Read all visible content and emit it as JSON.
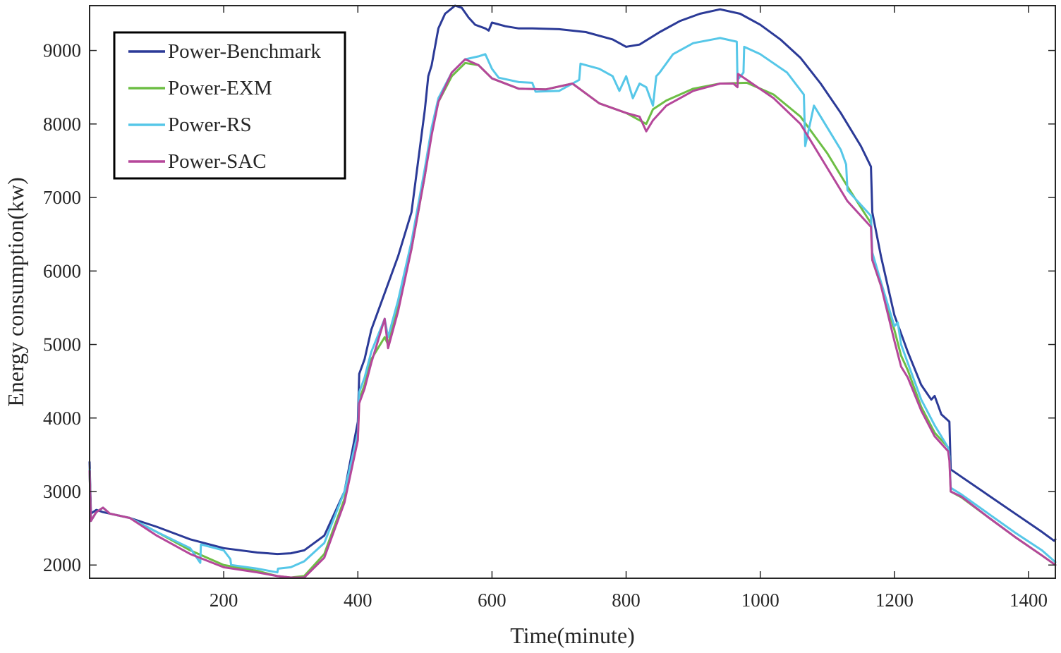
{
  "chart_data": {
    "type": "line",
    "title": "",
    "xlabel": "Time(minute)",
    "ylabel": "Energy consumption(kw)",
    "xlim": [
      0,
      1440
    ],
    "ylim": [
      1820,
      9610
    ],
    "xticks": [
      200,
      400,
      600,
      800,
      1000,
      1200,
      1400
    ],
    "yticks": [
      2000,
      3000,
      4000,
      5000,
      6000,
      7000,
      8000,
      9000
    ],
    "legend_position": "top-left",
    "series": [
      {
        "name": "Power-Benchmark",
        "color": "#2B3A97",
        "x": [
          0,
          2,
          10,
          20,
          30,
          60,
          100,
          150,
          200,
          250,
          280,
          300,
          320,
          350,
          380,
          400,
          402,
          410,
          420,
          440,
          460,
          480,
          500,
          505,
          510,
          520,
          530,
          545,
          555,
          565,
          575,
          590,
          595,
          600,
          620,
          640,
          660,
          700,
          740,
          780,
          800,
          820,
          850,
          880,
          910,
          940,
          970,
          1000,
          1030,
          1060,
          1090,
          1120,
          1150,
          1165,
          1167,
          1180,
          1200,
          1220,
          1240,
          1255,
          1260,
          1270,
          1282,
          1284,
          1300,
          1340,
          1380,
          1420,
          1438,
          1440
        ],
        "values": [
          3400,
          2700,
          2750,
          2720,
          2700,
          2640,
          2520,
          2350,
          2230,
          2170,
          2150,
          2160,
          2200,
          2400,
          3000,
          3950,
          4600,
          4800,
          5200,
          5700,
          6200,
          6800,
          8200,
          8650,
          8800,
          9300,
          9500,
          9610,
          9580,
          9450,
          9350,
          9300,
          9270,
          9380,
          9330,
          9300,
          9300,
          9290,
          9250,
          9150,
          9050,
          9080,
          9250,
          9400,
          9500,
          9560,
          9500,
          9350,
          9150,
          8900,
          8550,
          8150,
          7700,
          7420,
          6800,
          6200,
          5400,
          4900,
          4450,
          4250,
          4300,
          4050,
          3950,
          3300,
          3200,
          2950,
          2700,
          2450,
          2330,
          2350
        ]
      },
      {
        "name": "Power-EXM",
        "color": "#6DBE45",
        "x": [
          0,
          2,
          10,
          20,
          30,
          60,
          100,
          150,
          200,
          250,
          280,
          300,
          320,
          350,
          380,
          400,
          402,
          410,
          420,
          440,
          445,
          460,
          480,
          500,
          510,
          520,
          540,
          560,
          580,
          600,
          640,
          680,
          720,
          760,
          800,
          820,
          830,
          840,
          860,
          900,
          940,
          980,
          1020,
          1060,
          1100,
          1130,
          1165,
          1167,
          1180,
          1200,
          1210,
          1220,
          1240,
          1260,
          1280,
          1282,
          1284,
          1300,
          1340,
          1380,
          1420,
          1440
        ],
        "values": [
          3300,
          2600,
          2720,
          2780,
          2700,
          2640,
          2450,
          2200,
          2000,
          1920,
          1850,
          1830,
          1850,
          2150,
          2900,
          3750,
          4250,
          4450,
          4800,
          5100,
          5000,
          5500,
          6300,
          7300,
          7900,
          8300,
          8650,
          8830,
          8800,
          8620,
          8480,
          8470,
          8550,
          8280,
          8150,
          8050,
          8000,
          8200,
          8320,
          8480,
          8550,
          8560,
          8400,
          8100,
          7600,
          7150,
          6650,
          6150,
          5800,
          5200,
          4850,
          4650,
          4150,
          3800,
          3600,
          3480,
          3000,
          2920,
          2650,
          2380,
          2130,
          2000
        ]
      },
      {
        "name": "Power-RS",
        "color": "#56C7E8",
        "x": [
          0,
          2,
          10,
          20,
          30,
          60,
          100,
          150,
          165,
          166,
          200,
          210,
          211,
          250,
          280,
          281,
          300,
          320,
          350,
          380,
          400,
          402,
          410,
          420,
          440,
          445,
          460,
          480,
          500,
          510,
          520,
          540,
          560,
          580,
          590,
          600,
          610,
          640,
          660,
          665,
          700,
          730,
          732,
          760,
          780,
          790,
          800,
          810,
          820,
          830,
          840,
          845,
          850,
          870,
          900,
          940,
          965,
          966,
          975,
          976,
          1000,
          1040,
          1065,
          1067,
          1080,
          1120,
          1128,
          1130,
          1165,
          1167,
          1180,
          1200,
          1205,
          1210,
          1220,
          1240,
          1260,
          1280,
          1282,
          1284,
          1300,
          1340,
          1380,
          1420,
          1440
        ],
        "values": [
          3300,
          2600,
          2720,
          2780,
          2700,
          2640,
          2450,
          2230,
          2030,
          2280,
          2200,
          2080,
          2000,
          1950,
          1900,
          1950,
          1970,
          2050,
          2300,
          3000,
          3800,
          4350,
          4550,
          4900,
          5350,
          5100,
          5600,
          6400,
          7400,
          7950,
          8350,
          8700,
          8880,
          8920,
          8950,
          8750,
          8630,
          8570,
          8560,
          8440,
          8450,
          8600,
          8820,
          8750,
          8650,
          8450,
          8650,
          8350,
          8550,
          8500,
          8250,
          8650,
          8700,
          8950,
          9100,
          9170,
          9120,
          8600,
          8700,
          9050,
          8950,
          8700,
          8400,
          7700,
          8250,
          7650,
          7450,
          7100,
          6750,
          6250,
          5850,
          5250,
          5300,
          5000,
          4750,
          4250,
          3900,
          3600,
          3480,
          3050,
          2960,
          2700,
          2440,
          2200,
          2040
        ]
      },
      {
        "name": "Power-SAC",
        "color": "#B5479A",
        "x": [
          0,
          2,
          10,
          20,
          30,
          60,
          100,
          150,
          200,
          250,
          280,
          300,
          320,
          350,
          380,
          400,
          402,
          410,
          420,
          440,
          445,
          460,
          480,
          500,
          510,
          520,
          540,
          560,
          580,
          600,
          640,
          680,
          720,
          760,
          800,
          820,
          830,
          840,
          860,
          900,
          940,
          960,
          966,
          967,
          980,
          1020,
          1060,
          1100,
          1130,
          1165,
          1167,
          1180,
          1200,
          1210,
          1220,
          1240,
          1260,
          1280,
          1282,
          1284,
          1300,
          1340,
          1380,
          1420,
          1440
        ],
        "values": [
          3280,
          2600,
          2720,
          2780,
          2700,
          2640,
          2400,
          2150,
          1970,
          1900,
          1850,
          1830,
          1830,
          2100,
          2850,
          3700,
          4200,
          4400,
          4750,
          5350,
          4950,
          5450,
          6300,
          7300,
          7850,
          8300,
          8700,
          8880,
          8800,
          8620,
          8480,
          8470,
          8550,
          8280,
          8150,
          8100,
          7900,
          8050,
          8250,
          8450,
          8550,
          8550,
          8500,
          8680,
          8600,
          8350,
          8000,
          7400,
          6950,
          6600,
          6150,
          5800,
          5050,
          4700,
          4550,
          4100,
          3750,
          3550,
          3420,
          3000,
          2930,
          2650,
          2380,
          2130,
          2000
        ]
      }
    ]
  }
}
